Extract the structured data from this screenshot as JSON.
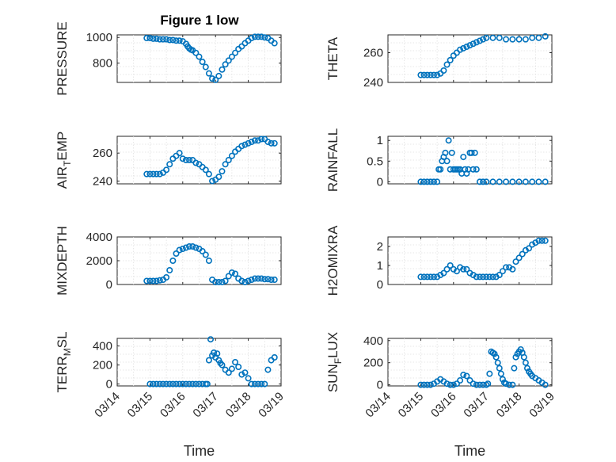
{
  "figure_title": "Figure 1 low",
  "chart_data": [
    {
      "type": "scatter",
      "title": "Figure 1 low",
      "ylabel": "PRESSURE",
      "xlabel": "",
      "xlim": [
        0,
        5
      ],
      "xticks": [
        0,
        1,
        2,
        3,
        4,
        5
      ],
      "xticklabels": [],
      "ylim": [
        650,
        1020
      ],
      "yticks": [
        800,
        1000
      ],
      "grid": true,
      "marker_color": "#0072bd",
      "x": [
        0.9,
        1.0,
        1.1,
        1.2,
        1.3,
        1.4,
        1.5,
        1.6,
        1.7,
        1.8,
        1.9,
        2.0,
        2.1,
        2.15,
        2.2,
        2.25,
        2.3,
        2.4,
        2.5,
        2.6,
        2.7,
        2.8,
        2.9,
        3.0,
        3.1,
        3.2,
        3.3,
        3.4,
        3.5,
        3.6,
        3.7,
        3.8,
        3.9,
        4.0,
        4.1,
        4.2,
        4.3,
        4.4,
        4.5,
        4.6,
        4.7,
        4.8
      ],
      "y": [
        995,
        995,
        990,
        990,
        985,
        985,
        985,
        980,
        980,
        975,
        975,
        970,
        950,
        930,
        915,
        905,
        900,
        880,
        850,
        810,
        770,
        720,
        680,
        670,
        700,
        750,
        790,
        820,
        850,
        880,
        910,
        930,
        955,
        975,
        995,
        1005,
        1005,
        1005,
        1000,
        995,
        975,
        955
      ]
    },
    {
      "type": "scatter",
      "ylabel": "THETA",
      "xlabel": "",
      "xlim": [
        0,
        5
      ],
      "xticks": [
        0,
        1,
        2,
        3,
        4,
        5
      ],
      "xticklabels": [],
      "ylim": [
        240,
        272
      ],
      "yticks": [
        240,
        260
      ],
      "grid": true,
      "marker_color": "#0072bd",
      "x": [
        1.0,
        1.1,
        1.2,
        1.3,
        1.4,
        1.5,
        1.6,
        1.7,
        1.8,
        1.9,
        2.0,
        2.1,
        2.2,
        2.3,
        2.4,
        2.5,
        2.6,
        2.7,
        2.8,
        2.9,
        3.0,
        3.2,
        3.4,
        3.6,
        3.8,
        4.0,
        4.2,
        4.4,
        4.6,
        4.8
      ],
      "y": [
        245,
        245,
        245,
        245,
        245,
        245,
        246,
        248,
        252,
        255,
        258,
        260,
        262,
        263,
        264,
        265,
        266,
        267,
        268,
        269,
        270,
        270,
        270,
        269,
        269,
        269,
        269,
        270,
        270,
        271
      ]
    },
    {
      "type": "scatter",
      "ylabel": "AIR_TEMP",
      "xlabel": "",
      "xlim": [
        0,
        5
      ],
      "xticks": [
        0,
        1,
        2,
        3,
        4,
        5
      ],
      "xticklabels": [],
      "ylim": [
        238,
        272
      ],
      "yticks": [
        240,
        260
      ],
      "grid": true,
      "marker_color": "#0072bd",
      "x": [
        0.9,
        1.0,
        1.1,
        1.2,
        1.3,
        1.4,
        1.5,
        1.6,
        1.7,
        1.8,
        1.9,
        2.0,
        2.1,
        2.2,
        2.3,
        2.4,
        2.5,
        2.6,
        2.7,
        2.8,
        2.9,
        3.0,
        3.1,
        3.2,
        3.3,
        3.4,
        3.5,
        3.6,
        3.7,
        3.8,
        3.9,
        4.0,
        4.1,
        4.2,
        4.3,
        4.4,
        4.5,
        4.6,
        4.7,
        4.8
      ],
      "y": [
        245,
        245,
        245,
        245,
        245,
        246,
        248,
        252,
        256,
        258,
        260,
        256,
        255,
        255,
        255,
        253,
        252,
        250,
        248,
        245,
        240,
        241,
        243,
        247,
        252,
        255,
        258,
        261,
        263,
        265,
        266,
        267,
        268,
        269,
        269,
        270,
        270,
        268,
        267,
        267
      ]
    },
    {
      "type": "scatter",
      "ylabel": "RAINFALL",
      "xlabel": "",
      "xlim": [
        0,
        5
      ],
      "xticks": [
        0,
        1,
        2,
        3,
        4,
        5
      ],
      "xticklabels": [],
      "ylim": [
        -0.05,
        1.1
      ],
      "yticks": [
        0,
        0.5,
        1
      ],
      "grid": true,
      "marker_color": "#0072bd",
      "x": [
        1.0,
        1.1,
        1.2,
        1.3,
        1.4,
        1.5,
        1.55,
        1.6,
        1.65,
        1.7,
        1.75,
        1.8,
        1.85,
        1.9,
        1.95,
        2.0,
        2.05,
        2.1,
        2.15,
        2.2,
        2.25,
        2.3,
        2.35,
        2.4,
        2.45,
        2.5,
        2.55,
        2.6,
        2.65,
        2.7,
        2.8,
        2.9,
        3.0,
        3.2,
        3.4,
        3.6,
        3.8,
        4.0,
        4.2,
        4.4,
        4.6,
        4.8
      ],
      "y": [
        0,
        0,
        0,
        0,
        0,
        0,
        0.3,
        0.3,
        0.5,
        0.6,
        0.7,
        0.5,
        1.0,
        0.3,
        0.7,
        0.3,
        0.3,
        0.3,
        0.3,
        0.3,
        0.2,
        0.6,
        0.3,
        0.2,
        0.3,
        0.7,
        0.7,
        0.3,
        0.7,
        0.3,
        0,
        0,
        0,
        0,
        0,
        0,
        0,
        0,
        0,
        0,
        0,
        0
      ]
    },
    {
      "type": "scatter",
      "ylabel": "MIXDEPTH",
      "xlabel": "",
      "xlim": [
        0,
        5
      ],
      "xticks": [
        0,
        1,
        2,
        3,
        4,
        5
      ],
      "xticklabels": [],
      "ylim": [
        0,
        4000
      ],
      "yticks": [
        0,
        2000,
        4000
      ],
      "grid": true,
      "marker_color": "#0072bd",
      "x": [
        0.9,
        1.0,
        1.1,
        1.2,
        1.3,
        1.4,
        1.5,
        1.6,
        1.7,
        1.8,
        1.9,
        2.0,
        2.1,
        2.2,
        2.3,
        2.4,
        2.5,
        2.6,
        2.7,
        2.8,
        2.9,
        3.0,
        3.1,
        3.2,
        3.3,
        3.4,
        3.5,
        3.6,
        3.7,
        3.8,
        3.9,
        4.0,
        4.1,
        4.2,
        4.3,
        4.4,
        4.5,
        4.6,
        4.7,
        4.8
      ],
      "y": [
        300,
        300,
        300,
        300,
        350,
        400,
        600,
        1200,
        2000,
        2600,
        2900,
        3000,
        3100,
        3200,
        3200,
        3100,
        3000,
        2800,
        2500,
        2000,
        400,
        200,
        200,
        200,
        300,
        700,
        1000,
        900,
        500,
        300,
        200,
        300,
        400,
        500,
        500,
        500,
        450,
        450,
        400,
        400
      ]
    },
    {
      "type": "scatter",
      "ylabel": "H2OMIXRA",
      "xlabel": "",
      "xlim": [
        0,
        5
      ],
      "xticks": [
        0,
        1,
        2,
        3,
        4,
        5
      ],
      "xticklabels": [],
      "ylim": [
        0,
        2.5
      ],
      "yticks": [
        0,
        1,
        2
      ],
      "grid": true,
      "marker_color": "#0072bd",
      "x": [
        1.0,
        1.1,
        1.2,
        1.3,
        1.4,
        1.5,
        1.6,
        1.7,
        1.8,
        1.9,
        2.0,
        2.1,
        2.2,
        2.3,
        2.4,
        2.5,
        2.6,
        2.7,
        2.8,
        2.9,
        3.0,
        3.1,
        3.2,
        3.3,
        3.4,
        3.5,
        3.6,
        3.7,
        3.8,
        3.9,
        4.0,
        4.1,
        4.2,
        4.3,
        4.4,
        4.5,
        4.6,
        4.7,
        4.8
      ],
      "y": [
        0.4,
        0.4,
        0.4,
        0.4,
        0.4,
        0.4,
        0.5,
        0.6,
        0.8,
        1.0,
        0.8,
        0.7,
        0.9,
        0.8,
        0.8,
        0.6,
        0.5,
        0.4,
        0.4,
        0.4,
        0.4,
        0.4,
        0.4,
        0.4,
        0.5,
        0.7,
        0.9,
        0.9,
        0.8,
        1.2,
        1.4,
        1.6,
        1.8,
        1.9,
        2.1,
        2.2,
        2.3,
        2.3,
        2.3
      ]
    },
    {
      "type": "scatter",
      "ylabel": "TERR_MSL",
      "xlabel": "Time",
      "xlim": [
        0,
        5
      ],
      "xticks": [
        0,
        1,
        2,
        3,
        4,
        5
      ],
      "xticklabels": [
        "03/14",
        "03/15",
        "03/16",
        "03/17",
        "03/18",
        "03/19"
      ],
      "ylim": [
        -20,
        480
      ],
      "yticks": [
        0,
        200,
        400
      ],
      "grid": true,
      "marker_color": "#0072bd",
      "x": [
        1.0,
        1.1,
        1.2,
        1.3,
        1.4,
        1.5,
        1.6,
        1.7,
        1.8,
        1.9,
        2.0,
        2.1,
        2.2,
        2.3,
        2.4,
        2.5,
        2.6,
        2.7,
        2.75,
        2.8,
        2.85,
        2.9,
        2.95,
        3.0,
        3.05,
        3.1,
        3.15,
        3.2,
        3.3,
        3.4,
        3.5,
        3.6,
        3.7,
        3.8,
        3.9,
        4.0,
        4.1,
        4.2,
        4.3,
        4.4,
        4.5,
        4.6,
        4.7,
        4.8
      ],
      "y": [
        0,
        0,
        0,
        0,
        0,
        0,
        0,
        0,
        0,
        0,
        0,
        0,
        0,
        0,
        0,
        0,
        0,
        0,
        0,
        250,
        470,
        300,
        330,
        280,
        320,
        250,
        220,
        200,
        150,
        120,
        160,
        230,
        180,
        100,
        120,
        60,
        0,
        0,
        0,
        0,
        0,
        150,
        250,
        280
      ]
    },
    {
      "type": "scatter",
      "ylabel": "SUN_FLUX",
      "xlabel": "Time",
      "xlim": [
        0,
        5
      ],
      "xticks": [
        0,
        1,
        2,
        3,
        4,
        5
      ],
      "xticklabels": [
        "03/14",
        "03/15",
        "03/16",
        "03/17",
        "03/18",
        "03/19"
      ],
      "ylim": [
        -10,
        420
      ],
      "yticks": [
        0,
        200,
        400
      ],
      "grid": true,
      "marker_color": "#0072bd",
      "x": [
        1.0,
        1.1,
        1.2,
        1.3,
        1.4,
        1.5,
        1.6,
        1.7,
        1.8,
        1.9,
        2.0,
        2.1,
        2.2,
        2.3,
        2.4,
        2.5,
        2.6,
        2.7,
        2.8,
        2.9,
        3.0,
        3.05,
        3.1,
        3.15,
        3.2,
        3.25,
        3.3,
        3.35,
        3.4,
        3.45,
        3.5,
        3.55,
        3.6,
        3.7,
        3.8,
        3.85,
        3.9,
        3.95,
        4.0,
        4.05,
        4.1,
        4.15,
        4.2,
        4.25,
        4.3,
        4.35,
        4.4,
        4.5,
        4.6,
        4.7,
        4.8
      ],
      "y": [
        0,
        0,
        0,
        0,
        10,
        30,
        50,
        30,
        10,
        0,
        0,
        10,
        40,
        90,
        80,
        40,
        10,
        0,
        0,
        0,
        0,
        10,
        100,
        300,
        290,
        280,
        250,
        200,
        150,
        100,
        50,
        20,
        10,
        0,
        0,
        150,
        250,
        280,
        300,
        320,
        290,
        250,
        200,
        150,
        120,
        100,
        80,
        60,
        40,
        20,
        0
      ]
    }
  ]
}
